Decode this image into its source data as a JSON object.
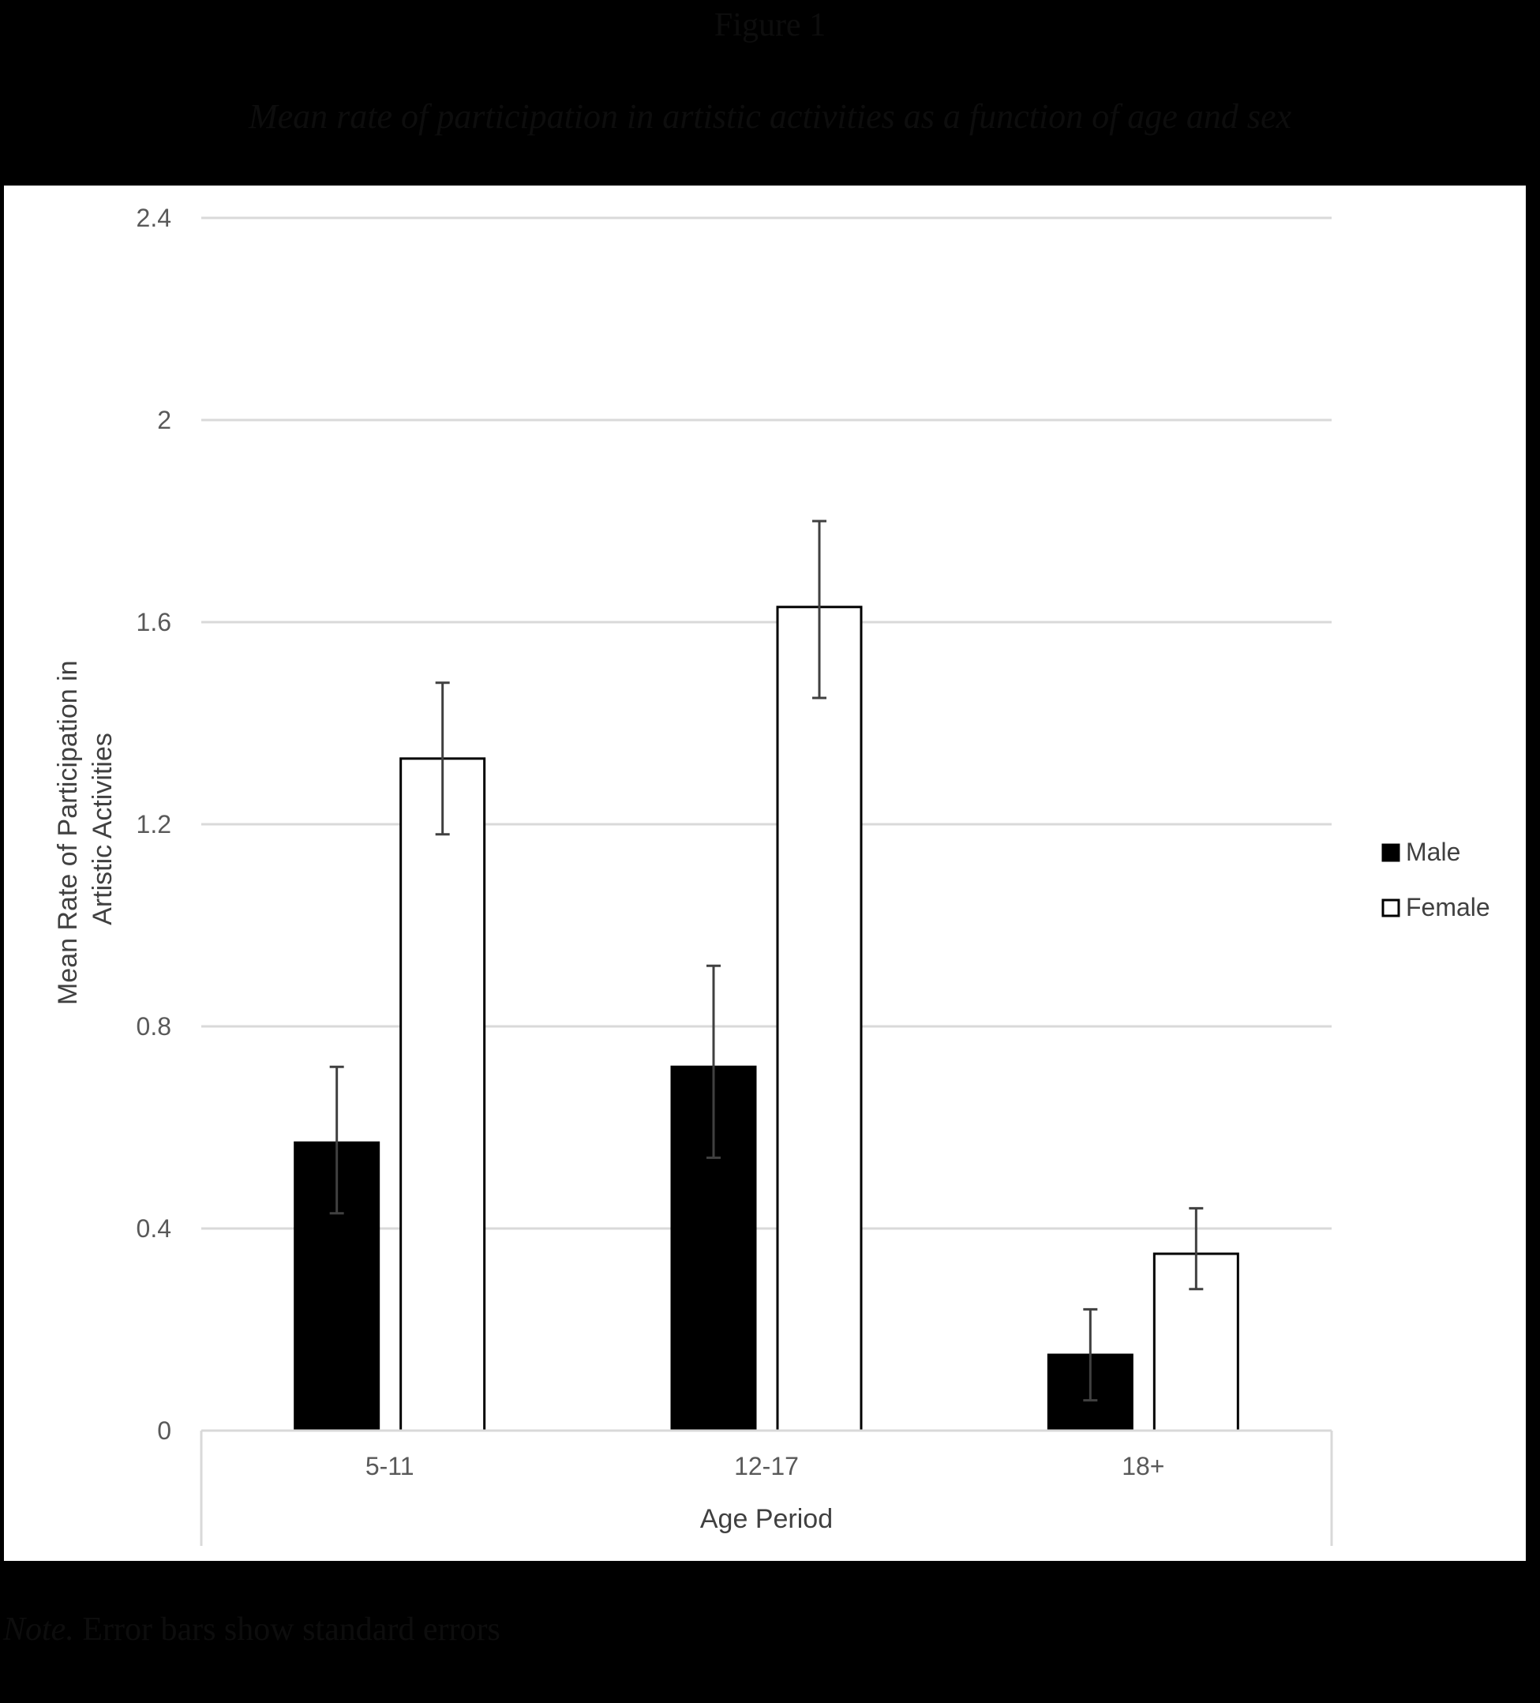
{
  "figure": {
    "label": "Figure 1",
    "title": "Mean rate of participation in artistic activities as a function of age and sex",
    "note_lead": "Note.",
    "note_text": " Error bars show standard errors"
  },
  "colors": {
    "page_background": "#000000",
    "plot_background": "#ffffff",
    "male_fill": "#000000",
    "female_fill": "#ffffff",
    "bar_outline": "#000000",
    "gridline": "#d9d9d9",
    "error_bar": "#404040"
  },
  "chart_data": {
    "type": "bar",
    "title": "",
    "xlabel": "Age Period",
    "ylabel": "Mean Rate of Participation in Artistic Activities",
    "ylabel_lines": [
      "Mean Rate of Participation in",
      "Artistic Activities"
    ],
    "categories": [
      "5-11",
      "12-17",
      "18+"
    ],
    "ylim": [
      0,
      2.4
    ],
    "yticks": [
      0,
      0.4,
      0.8,
      1.2,
      1.6,
      2,
      2.4
    ],
    "ytick_labels": [
      "0",
      "0.4",
      "0.8",
      "1.2",
      "1.6",
      "2",
      "2.4"
    ],
    "grid": true,
    "legend_position": "right",
    "series": [
      {
        "name": "Male",
        "color": "#000000",
        "values": [
          0.57,
          0.72,
          0.15
        ],
        "error_low": [
          0.43,
          0.54,
          0.06
        ],
        "error_high": [
          0.72,
          0.92,
          0.24
        ]
      },
      {
        "name": "Female",
        "color": "#ffffff",
        "values": [
          1.33,
          1.63,
          0.35
        ],
        "error_low": [
          1.18,
          1.45,
          0.28
        ],
        "error_high": [
          1.48,
          1.8,
          0.44
        ]
      }
    ]
  }
}
